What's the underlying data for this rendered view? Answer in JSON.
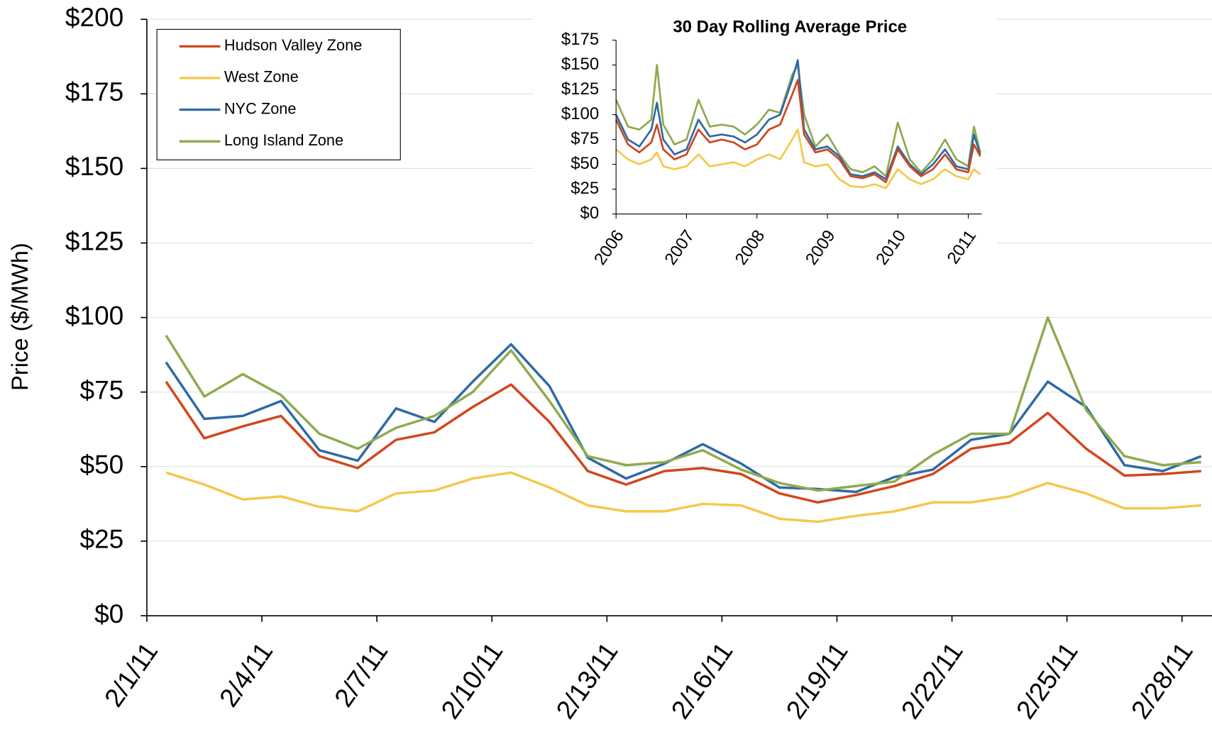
{
  "chart_data": [
    {
      "type": "line",
      "y_label": "Price ($/MWh)",
      "categories": [
        "2/1/11",
        null,
        null,
        "2/4/11",
        null,
        null,
        "2/7/11",
        null,
        null,
        "2/10/11",
        null,
        null,
        "2/13/11",
        null,
        null,
        "2/16/11",
        null,
        null,
        "2/19/11",
        null,
        null,
        "2/22/11",
        null,
        null,
        "2/25/11",
        null,
        null,
        "2/28/11"
      ],
      "series": [
        {
          "name": "Hudson Valley Zone",
          "color": "#d2461e",
          "values": [
            78.5,
            59.5,
            63.5,
            67,
            53.5,
            49.5,
            59,
            61.5,
            70,
            77.5,
            65,
            48.5,
            44,
            48.5,
            49.5,
            47.5,
            41,
            38,
            40.5,
            43.5,
            47.5,
            56,
            58,
            68,
            56,
            47,
            47.5,
            48.5
          ]
        },
        {
          "name": "West Zone",
          "color": "#f5c84b",
          "values": [
            48,
            44,
            39,
            40,
            36.5,
            35,
            41,
            42,
            46,
            48,
            43,
            37,
            35,
            35,
            37.5,
            37,
            32.5,
            31.5,
            33.5,
            35,
            38,
            38,
            40,
            44.5,
            41,
            36,
            36,
            37
          ]
        },
        {
          "name": "NYC Zone",
          "color": "#2e6aa6",
          "values": [
            85,
            66,
            67,
            72,
            55.5,
            52,
            69.5,
            65,
            78.5,
            91,
            77,
            53,
            46,
            51,
            57.5,
            51,
            43,
            42.5,
            41.5,
            46.5,
            49,
            59,
            61,
            78.5,
            70,
            50.5,
            48.5,
            53.5
          ]
        },
        {
          "name": "Long Island Zone",
          "color": "#8fab4e",
          "values": [
            94,
            73.5,
            81,
            74,
            61,
            56,
            63,
            67,
            75,
            89,
            72,
            53.5,
            50.5,
            51.5,
            55.5,
            49,
            44.5,
            42,
            43.5,
            45,
            54,
            61,
            61,
            100,
            69,
            53.5,
            50.5,
            51.5
          ]
        }
      ],
      "ylim": [
        0,
        200
      ],
      "yticks": [
        {
          "value": 0,
          "label": "$0"
        },
        {
          "value": 25,
          "label": "$25"
        },
        {
          "value": 50,
          "label": "$50"
        },
        {
          "value": 75,
          "label": "$75"
        },
        {
          "value": 100,
          "label": "$100"
        },
        {
          "value": 125,
          "label": "$125"
        },
        {
          "value": 150,
          "label": "$150"
        },
        {
          "value": 175,
          "label": "$175"
        },
        {
          "value": 200,
          "label": "$200"
        }
      ],
      "grid": true,
      "legend": "top-left"
    },
    {
      "type": "line",
      "title": "30 Day Rolling Average Price",
      "x": [
        2006,
        2006.17,
        2006.33,
        2006.5,
        2006.58,
        2006.67,
        2006.83,
        2007,
        2007.17,
        2007.33,
        2007.5,
        2007.67,
        2007.83,
        2008,
        2008.17,
        2008.33,
        2008.5,
        2008.58,
        2008.67,
        2008.83,
        2009,
        2009.17,
        2009.33,
        2009.5,
        2009.67,
        2009.83,
        2010,
        2010.17,
        2010.33,
        2010.5,
        2010.67,
        2010.83,
        2011,
        2011.08,
        2011.17
      ],
      "series": [
        {
          "color": "#f5c84b",
          "values": [
            65,
            55,
            50,
            55,
            62,
            48,
            45,
            48,
            60,
            48,
            50,
            52,
            48,
            55,
            60,
            55,
            75,
            85,
            52,
            48,
            50,
            35,
            28,
            27,
            30,
            26,
            45,
            35,
            30,
            35,
            45,
            38,
            35,
            45,
            40
          ]
        },
        {
          "color": "#8fab4e",
          "values": [
            115,
            88,
            85,
            95,
            150,
            90,
            70,
            75,
            115,
            88,
            90,
            88,
            80,
            90,
            105,
            102,
            140,
            150,
            100,
            68,
            80,
            60,
            45,
            42,
            48,
            38,
            92,
            55,
            42,
            55,
            75,
            55,
            48,
            88,
            62
          ]
        },
        {
          "color": "#2e6aa6",
          "values": [
            100,
            75,
            68,
            85,
            112,
            75,
            60,
            65,
            95,
            78,
            80,
            78,
            72,
            80,
            95,
            100,
            135,
            155,
            85,
            65,
            68,
            58,
            40,
            38,
            42,
            35,
            68,
            50,
            40,
            50,
            65,
            48,
            45,
            80,
            60
          ]
        },
        {
          "color": "#d2461e",
          "values": [
            95,
            70,
            62,
            72,
            90,
            65,
            55,
            60,
            85,
            72,
            75,
            72,
            65,
            70,
            85,
            90,
            120,
            135,
            80,
            62,
            65,
            55,
            38,
            36,
            40,
            32,
            65,
            48,
            38,
            45,
            60,
            45,
            42,
            70,
            58
          ]
        }
      ],
      "xlim": [
        2006,
        2011.19
      ],
      "xticks": [
        2006,
        2007,
        2008,
        2009,
        2010,
        2011
      ],
      "ylim": [
        0,
        175
      ],
      "yticks": [
        {
          "value": 0,
          "label": "$0"
        },
        {
          "value": 25,
          "label": "$25"
        },
        {
          "value": 50,
          "label": "$50"
        },
        {
          "value": 75,
          "label": "$75"
        },
        {
          "value": 100,
          "label": "$100"
        },
        {
          "value": 125,
          "label": "$125"
        },
        {
          "value": 150,
          "label": "$150"
        },
        {
          "value": 175,
          "label": "$175"
        }
      ]
    }
  ]
}
